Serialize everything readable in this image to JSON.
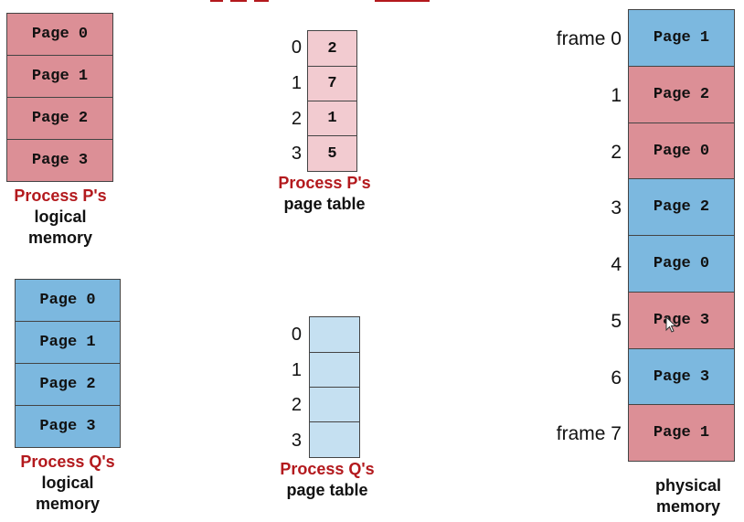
{
  "colors": {
    "p": "#dc8f96",
    "q": "#7cb8df",
    "p_table": "#f2cbd0",
    "q_table": "#c5e0f1",
    "caption_red": "#b3191d"
  },
  "p_logical": {
    "pages": [
      "Page 0",
      "Page 1",
      "Page 2",
      "Page 3"
    ],
    "caption_owner": "Process P's",
    "caption_line2": "logical",
    "caption_line3": "memory"
  },
  "q_logical": {
    "pages": [
      "Page 0",
      "Page 1",
      "Page 2",
      "Page 3"
    ],
    "caption_owner": "Process Q's",
    "caption_line2": "logical",
    "caption_line3": "memory"
  },
  "p_table": {
    "indices": [
      "0",
      "1",
      "2",
      "3"
    ],
    "values": [
      "2",
      "7",
      "1",
      "5"
    ],
    "caption_owner": "Process P's",
    "caption_line2": "page table"
  },
  "q_table": {
    "indices": [
      "0",
      "1",
      "2",
      "3"
    ],
    "values": [
      "",
      "",
      "",
      ""
    ],
    "caption_owner": "Process Q's",
    "caption_line2": "page table"
  },
  "physical": {
    "frame_labels": [
      "frame 0",
      "1",
      "2",
      "3",
      "4",
      "5",
      "6",
      "frame 7"
    ],
    "frames": [
      {
        "label": "Page 1",
        "owner": "q"
      },
      {
        "label": "Page 2",
        "owner": "p"
      },
      {
        "label": "Page 0",
        "owner": "p"
      },
      {
        "label": "Page 2",
        "owner": "q"
      },
      {
        "label": "Page 0",
        "owner": "q"
      },
      {
        "label": "Page 3",
        "owner": "p"
      },
      {
        "label": "Page 3",
        "owner": "q"
      },
      {
        "label": "Page 1",
        "owner": "p"
      }
    ],
    "caption_line1": "physical",
    "caption_line2": "memory"
  }
}
